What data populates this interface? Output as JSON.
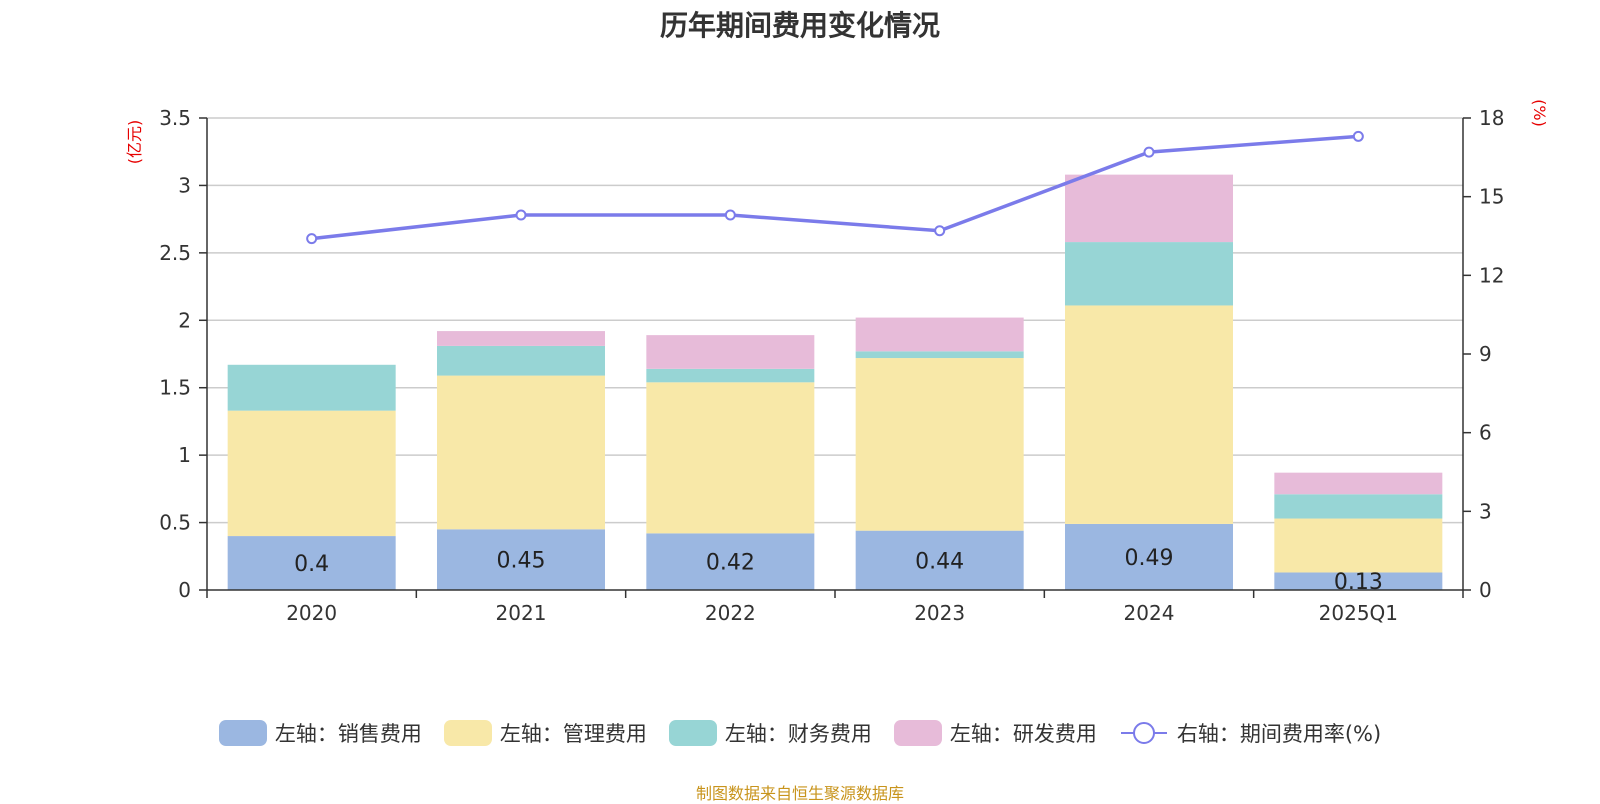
{
  "title": "历年期间费用变化情况",
  "source_note": "制图数据来自恒生聚源数据库",
  "left_unit": "(亿元)",
  "right_unit": "(%)",
  "colors": {
    "sales": "#9bb7e1",
    "admin": "#f8e8a8",
    "finance": "#97d5d5",
    "rnd": "#e7bbd9",
    "rate_line": "#7b7bea",
    "unit_text": "#e60000"
  },
  "legend": [
    {
      "label": "左轴：销售费用",
      "type": "swatch",
      "color_key": "sales"
    },
    {
      "label": "左轴：管理费用",
      "type": "swatch",
      "color_key": "admin"
    },
    {
      "label": "左轴：财务费用",
      "type": "swatch",
      "color_key": "finance"
    },
    {
      "label": "左轴：研发费用",
      "type": "swatch",
      "color_key": "rnd"
    },
    {
      "label": "右轴：期间费用率(%)",
      "type": "line",
      "color_key": "rate_line"
    }
  ],
  "chart_data": {
    "type": "bar",
    "stacked": true,
    "categories": [
      "2020",
      "2021",
      "2022",
      "2023",
      "2024",
      "2025Q1"
    ],
    "series": [
      {
        "name": "左轴：销售费用",
        "axis": "left",
        "values": [
          0.4,
          0.45,
          0.42,
          0.44,
          0.49,
          0.13
        ],
        "labels": [
          "0.4",
          "0.45",
          "0.42",
          "0.44",
          "0.49",
          "0.13"
        ]
      },
      {
        "name": "左轴：管理费用",
        "axis": "left",
        "values": [
          0.93,
          1.14,
          1.12,
          1.28,
          1.62,
          0.4
        ]
      },
      {
        "name": "左轴：财务费用",
        "axis": "left",
        "values": [
          0.34,
          0.22,
          0.1,
          0.05,
          0.47,
          0.18
        ]
      },
      {
        "name": "左轴：研发费用",
        "axis": "left",
        "values": [
          0,
          0.11,
          0.25,
          0.25,
          0.5,
          0.16
        ]
      },
      {
        "name": "右轴：期间费用率(%)",
        "axis": "right",
        "type": "line",
        "values": [
          13.4,
          14.3,
          14.3,
          13.7,
          16.7,
          17.3
        ]
      }
    ],
    "left_axis": {
      "min": 0,
      "max": 3.5,
      "ticks": [
        "0",
        "0.5",
        "1",
        "1.5",
        "2",
        "2.5",
        "3",
        "3.5"
      ]
    },
    "right_axis": {
      "min": 0,
      "max": 18,
      "ticks": [
        "0",
        "3",
        "6",
        "9",
        "12",
        "15",
        "18"
      ]
    },
    "grid": true,
    "legend_position": "bottom"
  }
}
